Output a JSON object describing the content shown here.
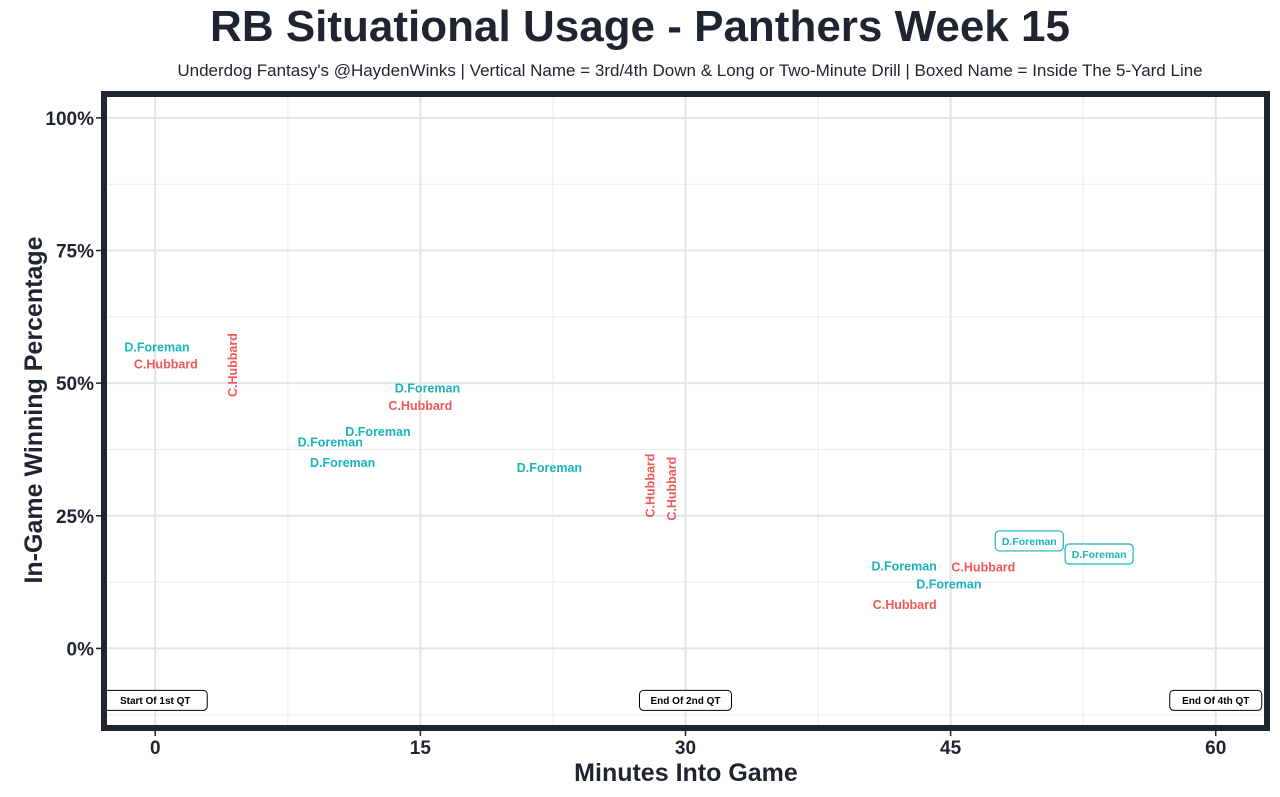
{
  "chart_data": {
    "type": "scatter",
    "title": "RB Situational Usage - Panthers Week 15",
    "subtitle": "Underdog Fantasy's @HaydenWinks | Vertical Name = 3rd/4th Down & Long or Two-Minute Drill | Boxed Name = Inside The 5-Yard Line",
    "xlabel": "Minutes Into Game",
    "ylabel": "In-Game Winning Percentage",
    "xlim": [
      -2.9,
      62.9
    ],
    "ylim": [
      -15,
      104.5
    ],
    "xticks": [
      0,
      15,
      30,
      45,
      60
    ],
    "xtick_labels": [
      "0",
      "15",
      "30",
      "45",
      "60"
    ],
    "yticks": [
      0,
      25,
      50,
      75,
      100
    ],
    "ytick_labels": [
      "0%",
      "25%",
      "50%",
      "75%",
      "100%"
    ],
    "grid": true,
    "colors": {
      "D.Foreman": "#19b5b8",
      "C.Hubbard": "#f0585a"
    },
    "points": [
      {
        "player": "D.Foreman",
        "x": 0.1,
        "y": 56.8,
        "style": "normal"
      },
      {
        "player": "C.Hubbard",
        "x": 0.6,
        "y": 53.6,
        "style": "normal"
      },
      {
        "player": "C.Hubbard",
        "x": 1.25,
        "y": 53.4,
        "style": "vertical"
      },
      {
        "player": "D.Foreman",
        "x": 15.4,
        "y": 48.3,
        "style": "normal"
      },
      {
        "player": "C.Hubbard",
        "x": 15.0,
        "y": 45.8,
        "style": "normal"
      },
      {
        "player": "D.Foreman",
        "x": 12.6,
        "y": 40.9,
        "style": "normal"
      },
      {
        "player": "D.Foreman",
        "x": 9.9,
        "y": 36.6,
        "style": "normal"
      },
      {
        "player": "D.Foreman",
        "x": 10.6,
        "y": 36.2,
        "style": "normal"
      },
      {
        "player": "D.Foreman",
        "x": 22.3,
        "y": 34.1,
        "style": "normal"
      },
      {
        "player": "C.Hubbard",
        "x": 28.5,
        "y": 30.7,
        "style": "vertical"
      },
      {
        "player": "C.Hubbard",
        "x": 28.7,
        "y": 30.1,
        "style": "vertical"
      },
      {
        "player": "D.Foreman",
        "x": 43.9,
        "y": 15.5,
        "style": "normal"
      },
      {
        "player": "C.Hubbard",
        "x": 46.4,
        "y": 15.9,
        "style": "normal"
      },
      {
        "player": "D.Foreman",
        "x": 44.9,
        "y": 12.1,
        "style": "normal"
      },
      {
        "player": "C.Hubbard",
        "x": 42.4,
        "y": 8.3,
        "style": "normal"
      },
      {
        "player": "D.Foreman",
        "x": 51.6,
        "y": 18.0,
        "style": "boxed"
      },
      {
        "player": "D.Foreman",
        "x": 52.1,
        "y": 17.8,
        "style": "boxed"
      }
    ],
    "annotations": [
      {
        "text": "Start Of 1st QT",
        "x": 0,
        "y": -9.8
      },
      {
        "text": "End Of 2nd QT",
        "x": 30,
        "y": -9.8
      },
      {
        "text": "End Of 4th QT",
        "x": 60,
        "y": -9.8
      }
    ]
  }
}
